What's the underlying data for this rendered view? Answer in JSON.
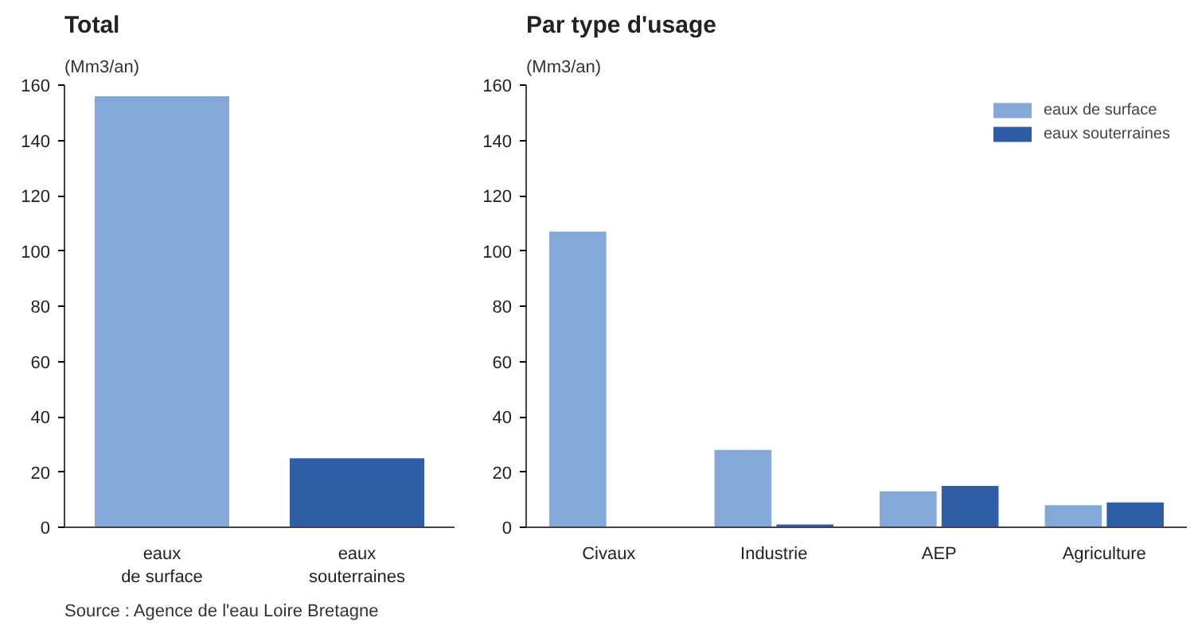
{
  "chart_data": [
    {
      "type": "bar",
      "title": "Total",
      "subtitle": "(Mm3/an)",
      "categories": [
        "eaux de surface",
        "eaux souterraines"
      ],
      "values": [
        156,
        25
      ],
      "colors": [
        "#84a8d8",
        "#2f5ea6"
      ],
      "ylim": [
        0,
        160
      ],
      "yticks": [
        0,
        20,
        40,
        60,
        80,
        100,
        120,
        140,
        160
      ],
      "grid": false,
      "annotations": [
        "Source : Agence de l'eau Loire Bretagne"
      ]
    },
    {
      "type": "bar",
      "title": "Par type d'usage",
      "subtitle": "(Mm3/an)",
      "categories": [
        "Civaux",
        "Industrie",
        "AEP",
        "Agriculture"
      ],
      "series": [
        {
          "name": "eaux de surface",
          "color": "#84a8d8",
          "values": [
            107,
            28,
            13,
            8
          ]
        },
        {
          "name": "eaux souterraines",
          "color": "#2f5ea6",
          "values": [
            null,
            1,
            15,
            9
          ]
        }
      ],
      "ylim": [
        0,
        160
      ],
      "yticks": [
        0,
        20,
        40,
        60,
        80,
        100,
        120,
        140,
        160
      ],
      "grid": false,
      "legend": "top right"
    }
  ]
}
